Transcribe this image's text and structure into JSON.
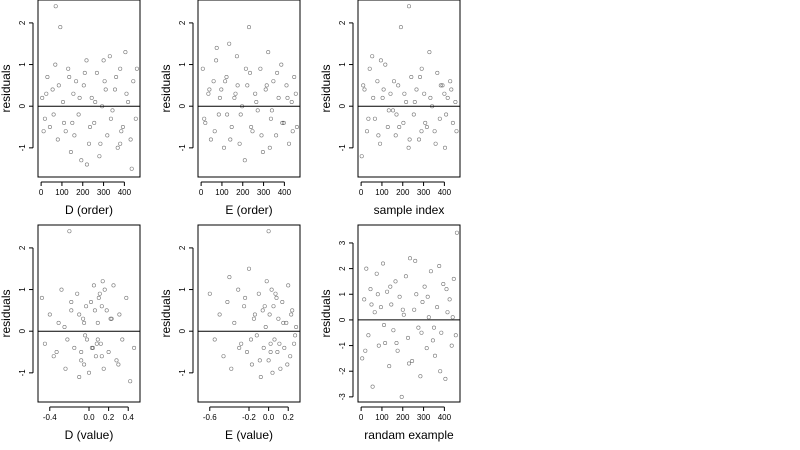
{
  "chart_data": [
    {
      "type": "scatter",
      "xlabel": "D (order)",
      "ylabel": "residuals",
      "xlim": [
        -15,
        475
      ],
      "ylim": [
        -1.7,
        2.55
      ],
      "xticks": [
        0,
        100,
        200,
        300,
        400
      ],
      "yticks": [
        -1,
        0,
        1,
        2
      ],
      "xtick_labels": [
        "0",
        "100",
        "200",
        "300",
        "400"
      ],
      "ytick_labels": [
        "-1",
        "0",
        "1",
        "2"
      ],
      "hline": 0,
      "grid": false,
      "x": [
        5,
        18,
        30,
        42,
        55,
        68,
        80,
        92,
        105,
        118,
        130,
        143,
        155,
        168,
        180,
        193,
        205,
        218,
        230,
        243,
        255,
        268,
        280,
        293,
        305,
        318,
        330,
        343,
        355,
        368,
        380,
        393,
        405,
        418,
        430,
        443,
        455,
        12,
        25,
        60,
        85,
        110,
        135,
        160,
        185,
        210,
        235,
        260,
        285,
        310,
        335,
        360,
        385,
        410,
        435,
        460,
        70,
        150,
        220,
        300,
        380
      ],
      "y": [
        0.2,
        -0.3,
        0.7,
        -0.5,
        0.4,
        1.0,
        -0.8,
        1.9,
        0.1,
        -0.6,
        0.9,
        -1.1,
        0.3,
        0.6,
        -0.2,
        -1.3,
        0.5,
        1.1,
        -0.9,
        0.2,
        -0.4,
        0.8,
        -1.2,
        0.0,
        0.6,
        -0.7,
        1.2,
        -0.1,
        0.4,
        -1.0,
        0.9,
        -0.5,
        1.3,
        0.1,
        -0.8,
        0.6,
        -0.3,
        -0.6,
        0.3,
        -0.2,
        0.5,
        -0.4,
        0.7,
        -0.7,
        0.2,
        0.8,
        -0.5,
        0.1,
        -0.9,
        0.4,
        -0.3,
        0.7,
        -0.6,
        0.3,
        -1.5,
        0.9,
        2.4,
        -0.4,
        -1.4,
        1.1,
        -0.9
      ]
    },
    {
      "type": "scatter",
      "xlabel": "E (order)",
      "ylabel": "residuals",
      "xlim": [
        -15,
        475
      ],
      "ylim": [
        -1.7,
        2.55
      ],
      "xticks": [
        0,
        100,
        200,
        300,
        400
      ],
      "yticks": [
        -1,
        0,
        1,
        2
      ],
      "xtick_labels": [
        "0",
        "100",
        "200",
        "300",
        "400"
      ],
      "ytick_labels": [
        "-1",
        "0",
        "1",
        "2"
      ],
      "hline": 0,
      "grid": false,
      "x": [
        8,
        20,
        35,
        47,
        60,
        72,
        85,
        97,
        110,
        122,
        135,
        147,
        160,
        172,
        185,
        197,
        210,
        222,
        235,
        247,
        260,
        272,
        285,
        297,
        310,
        322,
        335,
        347,
        360,
        372,
        385,
        397,
        410,
        422,
        435,
        447,
        460,
        15,
        40,
        65,
        90,
        115,
        140,
        165,
        190,
        215,
        240,
        265,
        290,
        315,
        340,
        365,
        390,
        415,
        440,
        455,
        75,
        125,
        175,
        230,
        330
      ],
      "y": [
        0.9,
        -0.4,
        0.3,
        -0.8,
        0.6,
        1.1,
        -0.2,
        0.4,
        -1.0,
        0.7,
        1.5,
        -0.5,
        0.2,
        1.2,
        -0.9,
        0.0,
        -1.3,
        0.5,
        0.8,
        -0.6,
        0.3,
        -0.1,
        0.9,
        -1.1,
        0.4,
        1.3,
        -0.3,
        0.6,
        -0.7,
        0.2,
        1.0,
        -0.4,
        0.5,
        -0.9,
        0.1,
        0.7,
        -0.5,
        -0.3,
        0.4,
        -0.6,
        0.2,
        0.6,
        -0.8,
        0.3,
        -0.2,
        0.9,
        -0.5,
        0.1,
        -0.7,
        0.5,
        -0.1,
        0.8,
        -0.4,
        0.2,
        -0.6,
        0.3,
        1.4,
        -0.2,
        0.5,
        1.9,
        -1.0
      ]
    },
    {
      "type": "scatter",
      "xlabel": "sample index",
      "ylabel": "residuals",
      "xlim": [
        -15,
        475
      ],
      "ylim": [
        -1.7,
        2.55
      ],
      "xticks": [
        0,
        100,
        200,
        300,
        400
      ],
      "yticks": [
        -1,
        0,
        1,
        2
      ],
      "xtick_labels": [
        "0",
        "100",
        "200",
        "300",
        "400"
      ],
      "ytick_labels": [
        "-1",
        "0",
        "1",
        "2"
      ],
      "hline": 0,
      "grid": false,
      "x": [
        3,
        16,
        28,
        41,
        53,
        66,
        78,
        91,
        103,
        116,
        128,
        141,
        153,
        166,
        178,
        191,
        203,
        216,
        228,
        241,
        253,
        266,
        278,
        291,
        303,
        316,
        328,
        341,
        353,
        366,
        378,
        391,
        403,
        416,
        428,
        441,
        453,
        10,
        35,
        58,
        83,
        108,
        133,
        158,
        183,
        208,
        233,
        258,
        283,
        308,
        333,
        358,
        383,
        408,
        433,
        458,
        95,
        170,
        230,
        290,
        400
      ],
      "y": [
        -1.2,
        0.4,
        -0.6,
        0.9,
        1.2,
        -0.3,
        0.6,
        -0.9,
        0.2,
        1.0,
        -0.5,
        0.3,
        -0.1,
        -0.7,
        0.5,
        1.9,
        -0.4,
        0.1,
        -1.0,
        0.7,
        -0.2,
        0.4,
        -0.8,
        0.9,
        0.3,
        -0.5,
        1.3,
        0.0,
        -0.6,
        0.8,
        -0.3,
        0.5,
        -1.0,
        0.2,
        0.6,
        -0.4,
        0.1,
        0.5,
        -0.3,
        0.2,
        -0.7,
        0.4,
        -0.1,
        0.6,
        -0.5,
        0.3,
        -0.8,
        0.1,
        0.7,
        -0.4,
        0.2,
        -0.9,
        0.5,
        -0.2,
        0.4,
        -0.6,
        1.1,
        -0.2,
        2.4,
        -0.6,
        0.3
      ]
    },
    {
      "type": "scatter",
      "xlabel": "D (value)",
      "ylabel": "residuals",
      "xlim": [
        -0.52,
        0.52
      ],
      "ylim": [
        -1.7,
        2.55
      ],
      "xticks": [
        -0.4,
        0,
        0.2,
        0.4
      ],
      "yticks": [
        -1,
        0,
        1,
        2
      ],
      "xtick_labels": [
        "-0.4",
        "0.0",
        "0.2",
        "0.4"
      ],
      "ytick_labels": [
        "-1",
        "0",
        "1",
        "2"
      ],
      "hline": 0,
      "grid": false,
      "x": [
        -0.48,
        -0.45,
        -0.4,
        -0.36,
        -0.31,
        -0.28,
        -0.24,
        -0.2,
        -0.18,
        -0.15,
        -0.12,
        -0.1,
        -0.08,
        -0.06,
        -0.05,
        -0.03,
        -0.02,
        0.0,
        0.02,
        0.04,
        0.05,
        0.07,
        0.09,
        0.1,
        0.12,
        0.14,
        0.15,
        0.18,
        0.2,
        0.22,
        0.25,
        0.28,
        0.31,
        0.34,
        0.38,
        0.42,
        0.46,
        -0.25,
        -0.22,
        -0.1,
        -0.08,
        -0.04,
        0.06,
        0.08,
        0.11,
        0.13,
        0.16,
        -0.33,
        -0.05,
        0.03,
        0.13,
        0.3,
        -0.18,
        0.09,
        0.23
      ],
      "y": [
        0.8,
        -0.3,
        0.4,
        -0.6,
        0.2,
        1.0,
        -0.9,
        2.4,
        0.5,
        -0.4,
        0.9,
        -1.1,
        -0.5,
        0.3,
        -0.8,
        0.6,
        -0.2,
        -1.0,
        0.7,
        -0.4,
        1.1,
        -0.6,
        0.2,
        0.8,
        -0.3,
        1.2,
        -0.9,
        0.5,
        -0.5,
        0.3,
        1.1,
        -0.7,
        0.4,
        -0.2,
        0.8,
        -1.2,
        -0.4,
        0.1,
        -0.2,
        0.4,
        -0.7,
        -0.1,
        0.5,
        -0.3,
        0.9,
        -0.6,
        1.0,
        -0.5,
        0.2,
        -0.4,
        0.6,
        -0.8,
        0.7,
        -0.2,
        0.3
      ]
    },
    {
      "type": "scatter",
      "xlabel": "E (value)",
      "ylabel": "residuals",
      "xlim": [
        -0.72,
        0.32
      ],
      "ylim": [
        -1.7,
        2.55
      ],
      "xticks": [
        -0.6,
        -0.2,
        0,
        0.2
      ],
      "yticks": [
        -1,
        0,
        1,
        2
      ],
      "xtick_labels": [
        "-0.6",
        "-0.2",
        "0.0",
        "0.2"
      ],
      "ytick_labels": [
        "-1",
        "0",
        "1",
        "2"
      ],
      "hline": 0,
      "grid": false,
      "x": [
        -0.6,
        -0.55,
        -0.5,
        -0.46,
        -0.42,
        -0.38,
        -0.35,
        -0.31,
        -0.28,
        -0.25,
        -0.22,
        -0.2,
        -0.17,
        -0.15,
        -0.12,
        -0.1,
        -0.08,
        -0.06,
        -0.05,
        -0.03,
        -0.02,
        0.0,
        0.01,
        0.02,
        0.03,
        0.04,
        0.05,
        0.06,
        0.08,
        0.09,
        0.1,
        0.12,
        0.14,
        0.16,
        0.18,
        0.2,
        0.22,
        0.24,
        0.26,
        0.28,
        -0.3,
        -0.24,
        -0.18,
        -0.14,
        -0.09,
        -0.04,
        0.02,
        0.07,
        0.11,
        0.15,
        0.19,
        0.23,
        0.27,
        -0.4,
        0.0
      ],
      "y": [
        0.9,
        -0.2,
        0.4,
        -0.6,
        0.7,
        -0.9,
        0.2,
        1.0,
        -0.3,
        0.6,
        -0.5,
        1.5,
        -0.8,
        0.3,
        -0.1,
        0.9,
        -1.1,
        0.5,
        -0.4,
        0.1,
        1.2,
        -0.7,
        0.4,
        -0.3,
        1.0,
        -1.0,
        0.6,
        -0.2,
        0.8,
        -0.5,
        0.3,
        -0.9,
        0.7,
        -0.4,
        0.2,
        1.1,
        -0.6,
        0.5,
        -0.3,
        0.1,
        -0.4,
        0.8,
        -0.2,
        0.4,
        -0.7,
        0.6,
        -0.5,
        0.9,
        -0.3,
        0.2,
        -0.8,
        0.4,
        -0.1,
        1.3,
        2.4
      ]
    },
    {
      "type": "scatter",
      "xlabel": "randam example",
      "ylabel": "residuals",
      "xlim": [
        -15,
        475
      ],
      "ylim": [
        -3.2,
        3.7
      ],
      "xticks": [
        0,
        100,
        200,
        300,
        400
      ],
      "yticks": [
        -3,
        -2,
        -1,
        0,
        1,
        2,
        3
      ],
      "xtick_labels": [
        "0",
        "100",
        "200",
        "300",
        "400"
      ],
      "ytick_labels": [
        "-3",
        "-2",
        "-1",
        "0",
        "1",
        "2",
        "3"
      ],
      "hline": 0,
      "grid": false,
      "x": [
        5,
        15,
        25,
        35,
        45,
        55,
        65,
        75,
        85,
        95,
        105,
        115,
        125,
        135,
        145,
        155,
        165,
        175,
        185,
        195,
        205,
        215,
        225,
        235,
        245,
        255,
        265,
        275,
        285,
        295,
        305,
        315,
        325,
        335,
        345,
        355,
        365,
        375,
        385,
        395,
        405,
        415,
        425,
        435,
        445,
        455,
        460,
        20,
        50,
        80,
        110,
        140,
        170,
        200,
        230,
        260,
        290,
        320,
        350,
        380,
        410,
        440
      ],
      "y": [
        -1.5,
        0.8,
        2.0,
        -0.6,
        1.2,
        -2.6,
        0.3,
        1.8,
        -1.0,
        0.5,
        2.2,
        -0.9,
        1.1,
        -1.8,
        0.6,
        -0.4,
        1.5,
        -1.2,
        0.9,
        -3.0,
        0.2,
        1.7,
        -0.7,
        2.4,
        -1.6,
        0.4,
        1.0,
        -0.3,
        -2.2,
        0.7,
        1.3,
        -1.1,
        0.1,
        1.9,
        -0.8,
        -1.4,
        0.5,
        2.1,
        -0.5,
        1.4,
        -2.3,
        0.3,
        0.8,
        -1.0,
        1.6,
        -0.6,
        3.4,
        -1.2,
        0.6,
        1.0,
        -0.2,
        1.3,
        -0.9,
        0.4,
        -1.7,
        2.3,
        -0.5,
        0.9,
        -0.3,
        -2.0,
        1.2,
        0.1
      ]
    }
  ]
}
